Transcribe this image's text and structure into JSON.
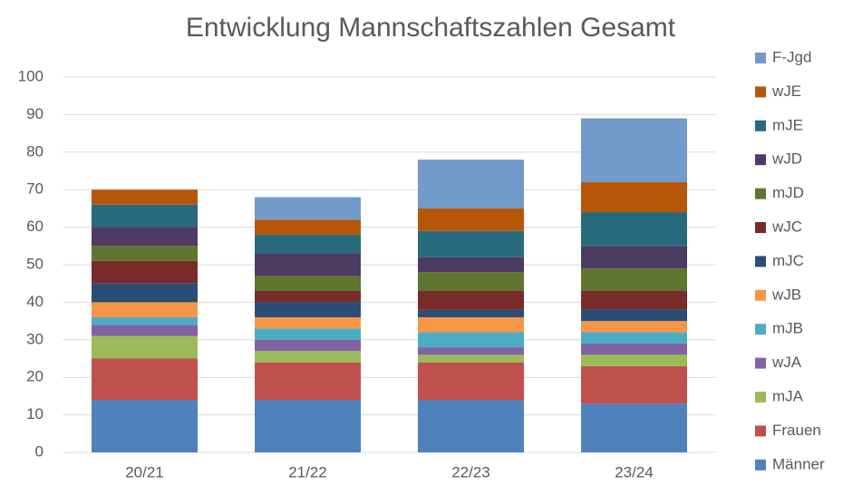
{
  "chart_data": {
    "type": "stacked_bar",
    "title": "Entwicklung Mannschaftszahlen Gesamt",
    "categories": [
      "20/21",
      "21/22",
      "22/23",
      "23/24"
    ],
    "series": [
      {
        "name": "Männer",
        "color": "#4f81bd",
        "values": [
          14,
          14,
          14,
          13
        ]
      },
      {
        "name": "Frauen",
        "color": "#c0504d",
        "values": [
          11,
          10,
          10,
          10
        ]
      },
      {
        "name": "mJA",
        "color": "#9bbb59",
        "values": [
          6,
          3,
          2,
          3
        ]
      },
      {
        "name": "wJA",
        "color": "#8064a2",
        "values": [
          3,
          3,
          2,
          3
        ]
      },
      {
        "name": "mJB",
        "color": "#4bacc6",
        "values": [
          2,
          3,
          4,
          3
        ]
      },
      {
        "name": "wJB",
        "color": "#f79646",
        "values": [
          4,
          3,
          4,
          3
        ]
      },
      {
        "name": "mJC",
        "color": "#2c4d75",
        "values": [
          5,
          4,
          2,
          3
        ]
      },
      {
        "name": "wJC",
        "color": "#772c2a",
        "values": [
          6,
          3,
          5,
          5
        ]
      },
      {
        "name": "mJD",
        "color": "#5f7530",
        "values": [
          4,
          4,
          5,
          6
        ]
      },
      {
        "name": "wJD",
        "color": "#4d3b62",
        "values": [
          5,
          6,
          4,
          6
        ]
      },
      {
        "name": "mJE",
        "color": "#276a7c",
        "values": [
          6,
          5,
          7,
          9
        ]
      },
      {
        "name": "wJE",
        "color": "#b65708",
        "values": [
          4,
          4,
          6,
          8
        ]
      },
      {
        "name": "F-Jgd",
        "color": "#729aca",
        "values": [
          0,
          6,
          13,
          17
        ]
      }
    ],
    "ylim": [
      0,
      100
    ],
    "yticks": [
      0,
      10,
      20,
      30,
      40,
      50,
      60,
      70,
      80,
      90,
      100
    ],
    "grid": true,
    "legend": "right"
  }
}
